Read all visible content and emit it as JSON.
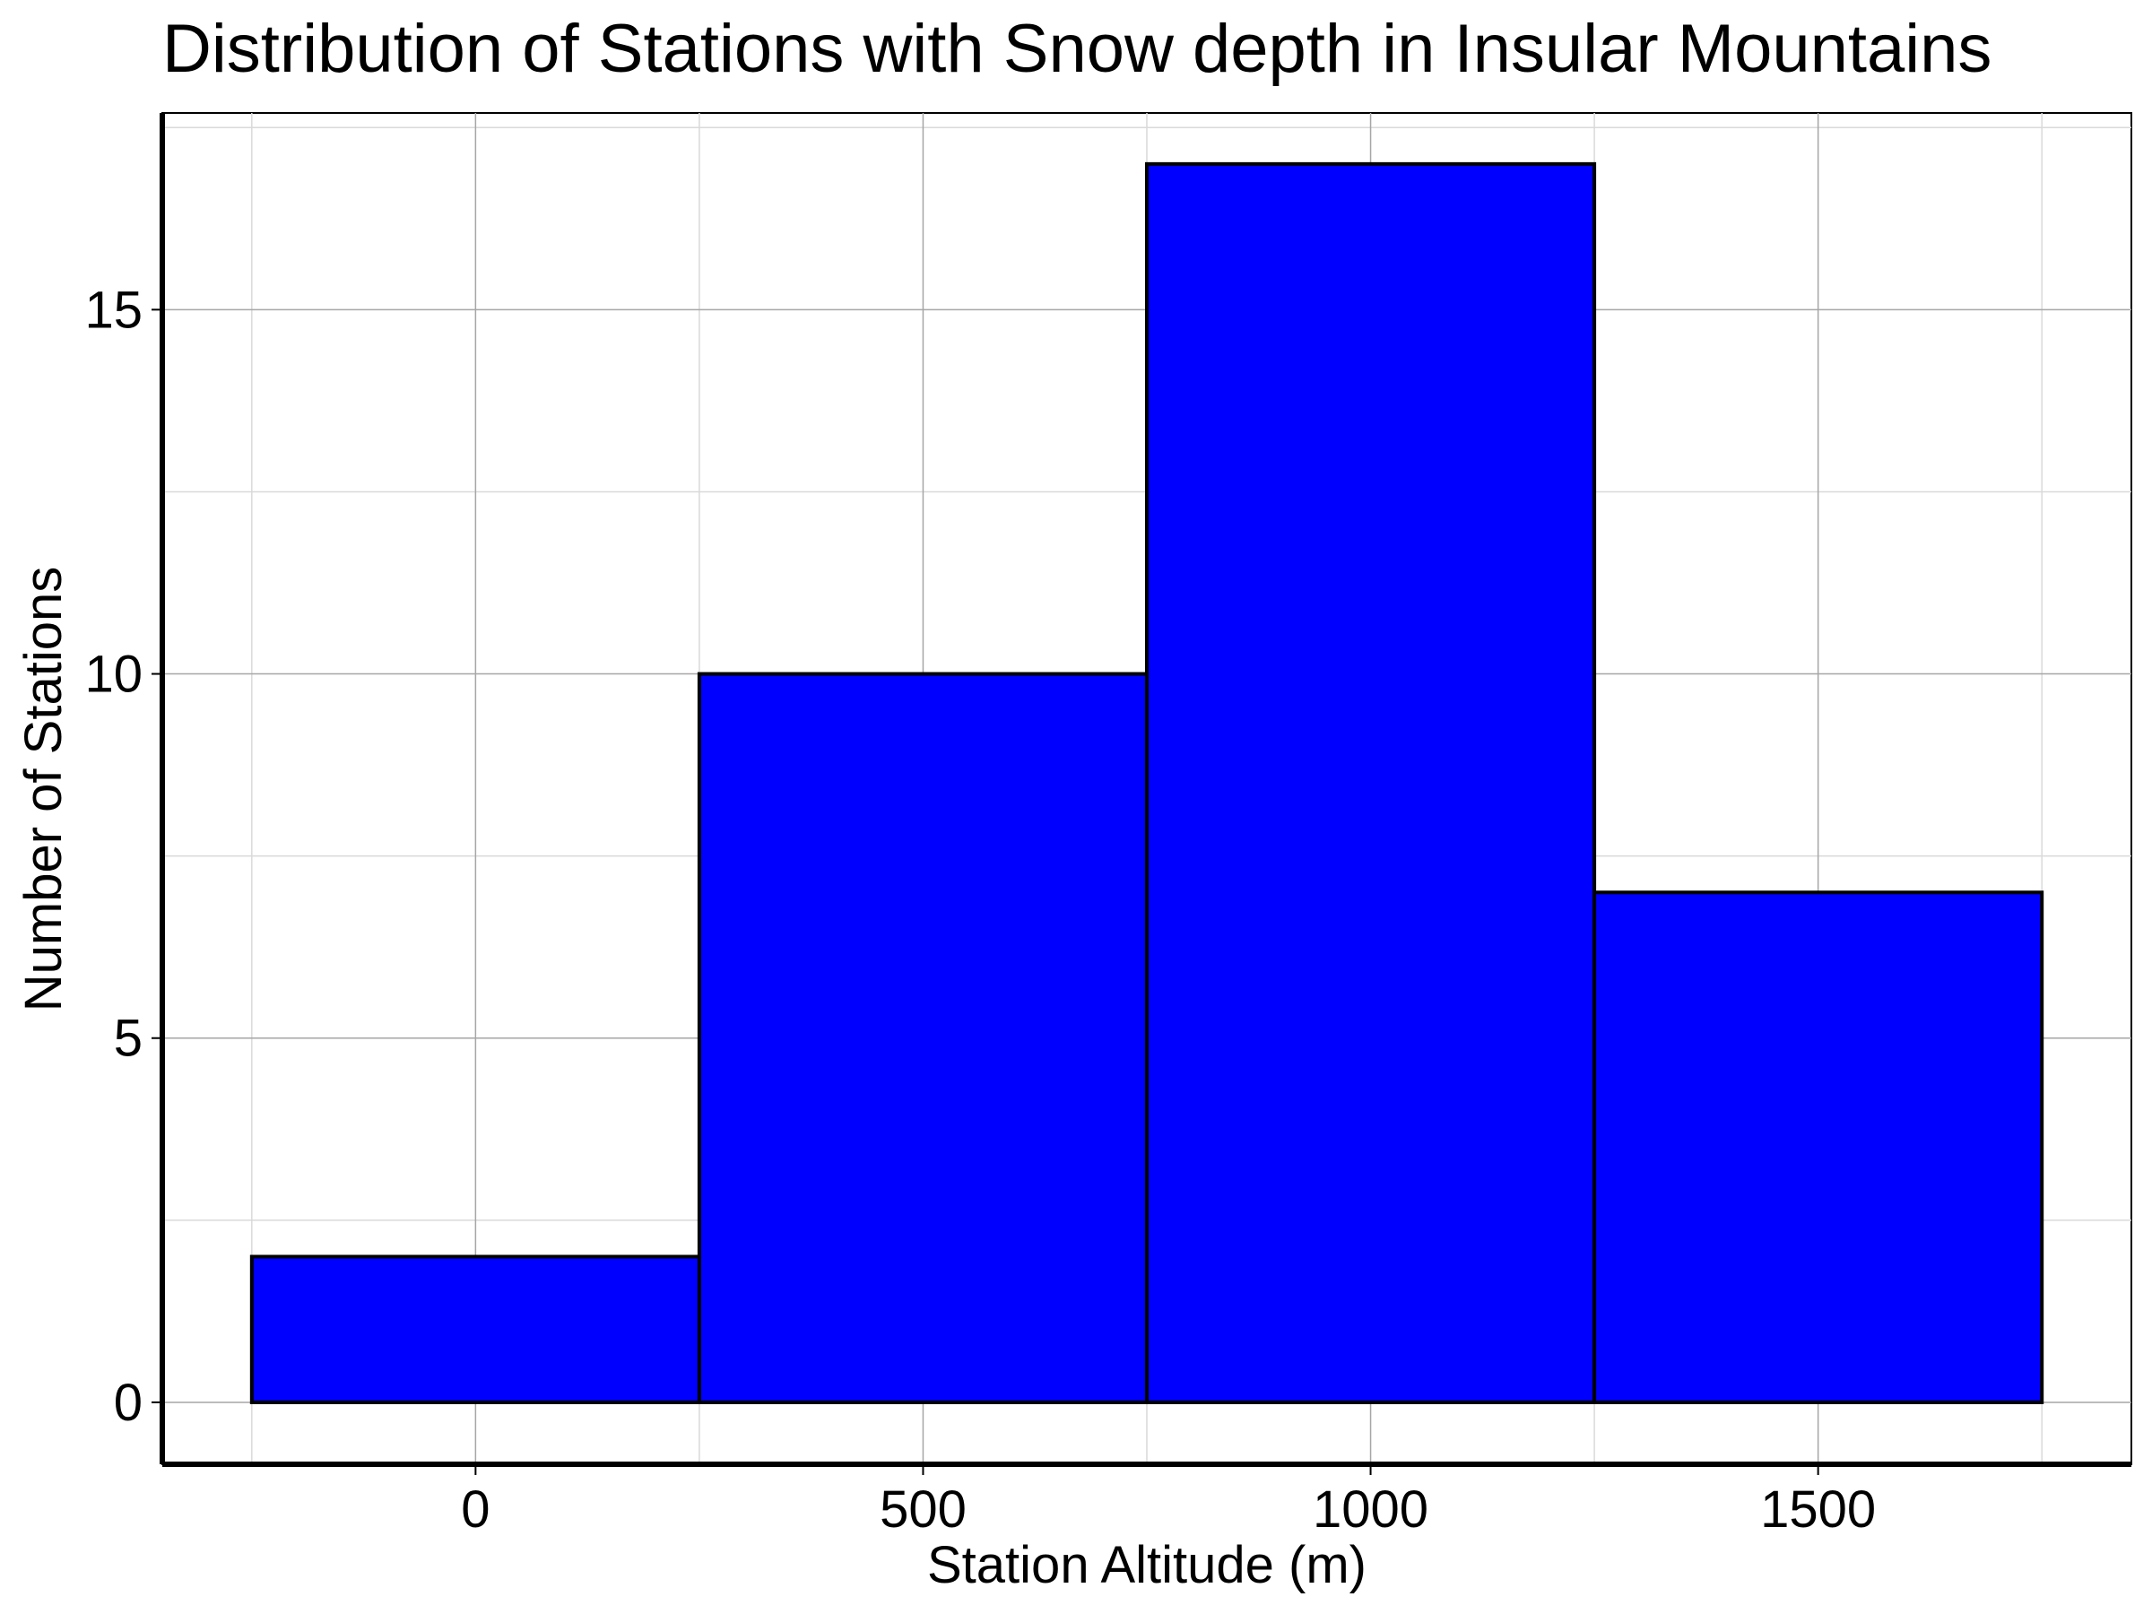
{
  "chart_data": {
    "type": "bar",
    "title": "Distribution of Stations with Snow depth in Insular Mountains",
    "xlabel": "Station Altitude (m)",
    "ylabel": "Number of Stations",
    "bins": [
      {
        "x0": -250,
        "x1": 250,
        "count": 2
      },
      {
        "x0": 250,
        "x1": 750,
        "count": 10
      },
      {
        "x0": 750,
        "x1": 1250,
        "count": 17
      },
      {
        "x0": 1250,
        "x1": 1750,
        "count": 7
      }
    ],
    "xlim": [
      -350,
      1850
    ],
    "ylim": [
      -0.85,
      17.7
    ],
    "xticks": [
      0,
      500,
      1000,
      1500
    ],
    "yticks": [
      0,
      5,
      10,
      15
    ],
    "xtick_labels": [
      "0",
      "500",
      "1000",
      "1500"
    ],
    "ytick_labels": [
      "0",
      "5",
      "10",
      "15"
    ],
    "minor_xgrid": [
      -250,
      250,
      750,
      1250,
      1750
    ],
    "minor_ygrid": [
      2.5,
      7.5,
      12.5,
      17.5
    ],
    "grid": true,
    "bar_color": "#0000ff",
    "edge_color": "#000000"
  }
}
